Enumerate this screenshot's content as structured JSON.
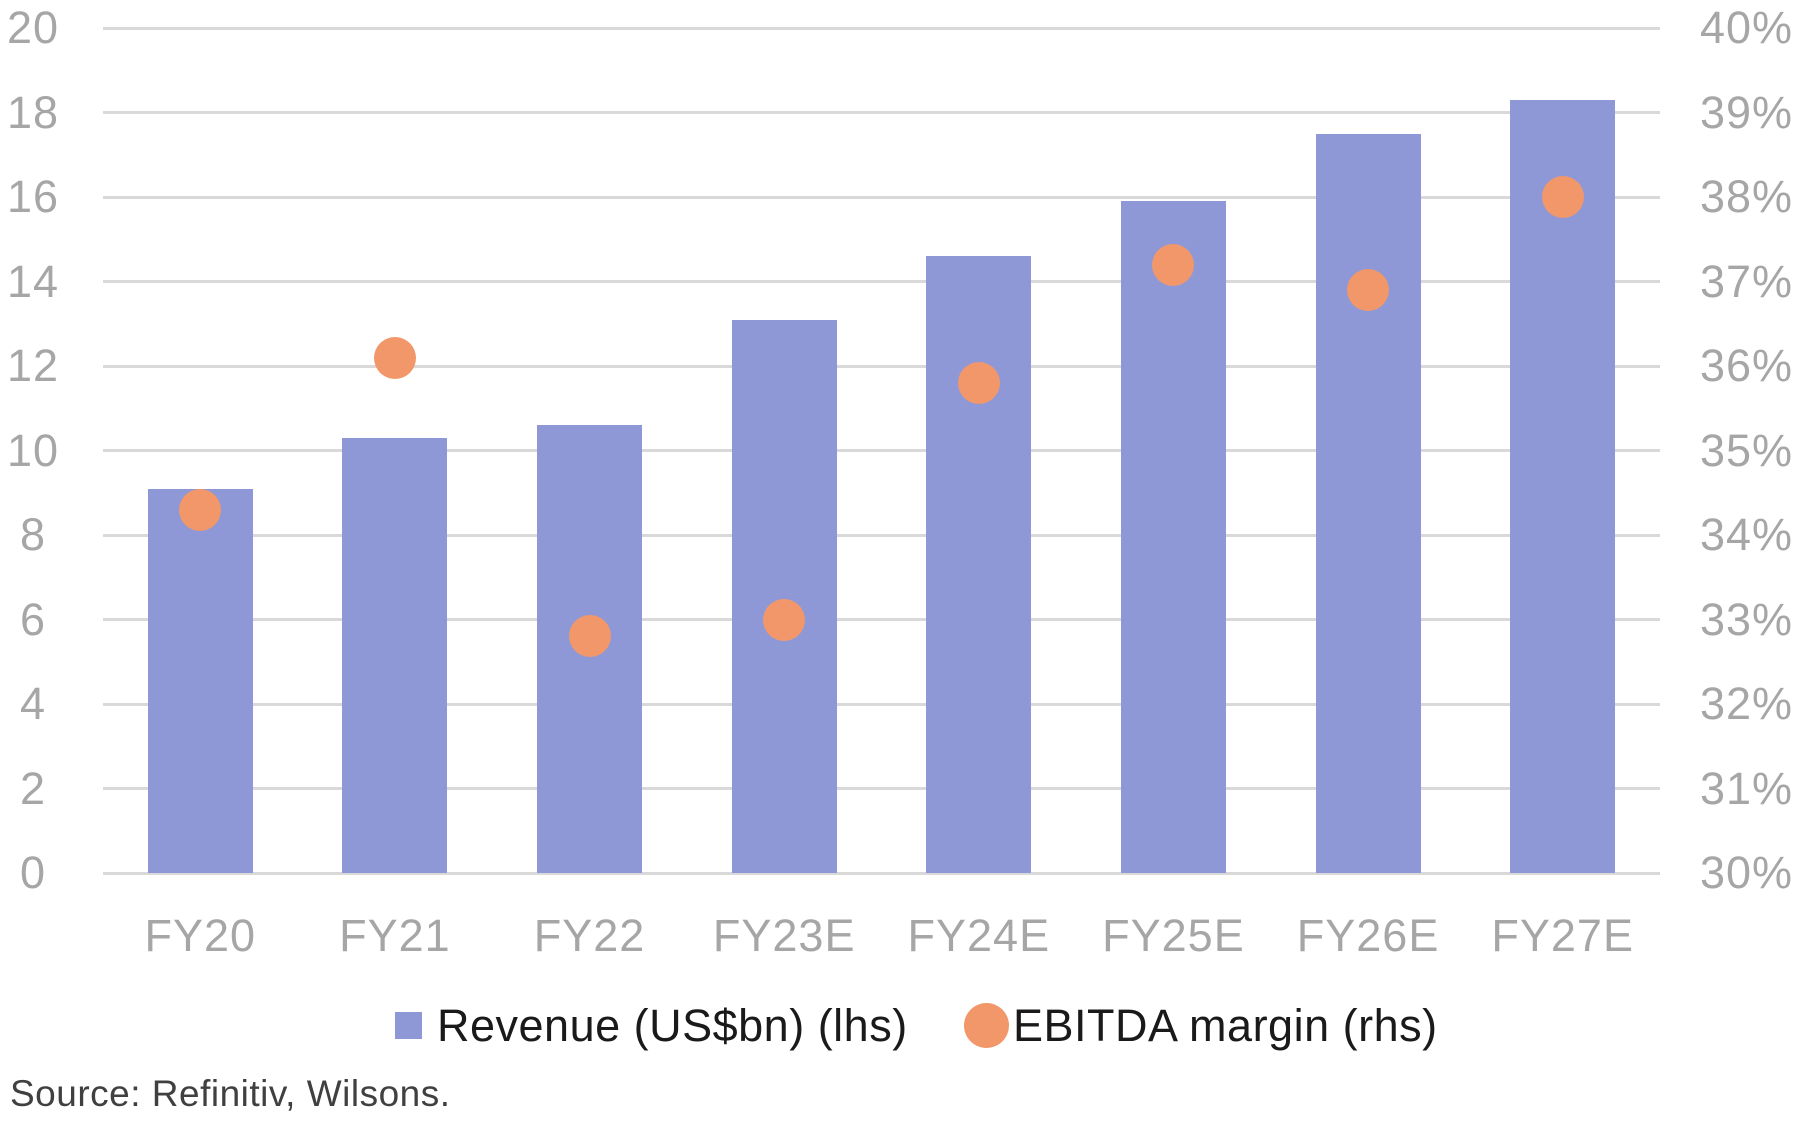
{
  "chart_data": {
    "type": "bar",
    "subtype": "combo-dual-axis (bars + scatter dots)",
    "categories": [
      "FY20",
      "FY21",
      "FY22",
      "FY23E",
      "FY24E",
      "FY25E",
      "FY26E",
      "FY27E"
    ],
    "series": [
      {
        "name": "Revenue (US$bn) (lhs)",
        "type": "bar",
        "axis": "left",
        "values": [
          9.1,
          10.3,
          10.6,
          13.1,
          14.6,
          15.9,
          17.5,
          18.3
        ]
      },
      {
        "name": "EBITDA margin (rhs)",
        "type": "scatter",
        "axis": "right",
        "unit": "%",
        "values": [
          34.3,
          36.1,
          32.8,
          33.0,
          35.8,
          37.2,
          36.9,
          38.0
        ]
      }
    ],
    "title": "",
    "xlabel": "",
    "ylabel_left": "",
    "ylabel_right": "",
    "left_axis": {
      "min": 0,
      "max": 20,
      "step": 2,
      "ticks": [
        "0",
        "2",
        "4",
        "6",
        "8",
        "10",
        "12",
        "14",
        "16",
        "18",
        "20"
      ]
    },
    "right_axis": {
      "min": 30,
      "max": 40,
      "step": 1,
      "ticks": [
        "30%",
        "31%",
        "32%",
        "33%",
        "34%",
        "35%",
        "36%",
        "37%",
        "38%",
        "39%",
        "40%"
      ]
    },
    "grid": true,
    "legend_position": "bottom"
  },
  "legend": {
    "revenue_label": "Revenue (US$bn) (lhs)",
    "ebitda_label": "EBITDA margin (rhs)"
  },
  "source": {
    "text": "Source: Refinitiv, Wilsons."
  },
  "colors": {
    "bar": "#8E98D7",
    "dot": "#F1976A",
    "gridline": "#D9D9D9",
    "axis_text": "#A6A6A6",
    "legend_text": "#1A1A1A",
    "source_text": "#404040",
    "background": "#FFFFFF"
  }
}
